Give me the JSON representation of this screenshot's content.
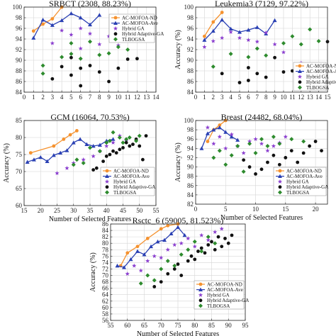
{
  "colors": {
    "ac_mofoa_nd": "#f5922f",
    "ac_mofoa_ave": "#2a40b3",
    "hybrid_ga": "#8b3fcf",
    "hybrid_adaptive_ga": "#111111",
    "tlbogsa": "#2e8b2e"
  },
  "chart_data": [
    {
      "type": "scatter",
      "title": "SRBCT (2308, 88.23%)",
      "xlabel": "",
      "ylabel": "",
      "xlim": [
        0,
        14
      ],
      "ylim": [
        84,
        100
      ],
      "xticks": [
        0,
        1,
        2,
        3,
        4,
        5,
        6,
        7,
        8,
        9,
        10,
        11,
        12,
        13,
        14
      ],
      "yticks": [
        84,
        86,
        88,
        90,
        92,
        94,
        96,
        98,
        100
      ],
      "legend": "top-right",
      "legend_entries": [
        "AC-MOFOA-ND",
        "AC-MOFOA-Ave",
        "Hybrid GA",
        "Hybrid Adaptive-GA",
        "TLBOGSA"
      ],
      "series": [
        {
          "name": "AC-MOFOA-ND",
          "marker": "circle-line",
          "color": "#f5922f",
          "x": [
            1,
            2,
            3,
            4
          ],
          "y": [
            95.5,
            96.8,
            97.8,
            100
          ]
        },
        {
          "name": "AC-MOFOA-Ave",
          "marker": "triangle-line",
          "color": "#2a40b3",
          "x": [
            1,
            2,
            3,
            4,
            5,
            6,
            7,
            8
          ],
          "y": [
            94.2,
            97.6,
            96.6,
            97.5,
            98.8,
            98.0,
            96.7,
            98.5
          ]
        },
        {
          "name": "Hybrid GA",
          "marker": "star",
          "color": "#8b3fcf",
          "x": [
            3,
            4,
            5,
            6,
            6,
            7,
            8,
            9,
            10
          ],
          "y": [
            93.2,
            95.6,
            94.8,
            92.2,
            96.0,
            95.0,
            93.0,
            94.5,
            92.8
          ]
        },
        {
          "name": "Hybrid Adaptive-GA",
          "marker": "circle",
          "color": "#111111",
          "x": [
            3,
            4,
            5,
            5,
            6,
            6,
            7,
            8,
            9,
            10,
            11,
            12
          ],
          "y": [
            86.5,
            88.8,
            87.2,
            90.5,
            85.2,
            88.5,
            89.0,
            87.8,
            86.0,
            88.5,
            90.2,
            90.3
          ]
        },
        {
          "name": "TLBOGSA",
          "marker": "diamond",
          "color": "#2e8b2e",
          "x": [
            2,
            2,
            4,
            5,
            5,
            6,
            7,
            8,
            9,
            10,
            11
          ],
          "y": [
            87.5,
            89.0,
            90.6,
            91.2,
            93.2,
            90.3,
            93.5,
            91.0,
            91.3,
            92.5,
            92.0
          ]
        }
      ]
    },
    {
      "type": "scatter",
      "title": "Leukemia3 (7129, 97.22%)",
      "xlabel": "",
      "ylabel": "Accuracy (%)",
      "xlim": [
        0,
        15
      ],
      "ylim": [
        84,
        100
      ],
      "xticks": [
        0,
        1,
        2,
        3,
        4,
        5,
        6,
        7,
        8,
        9,
        10,
        11,
        12,
        13,
        14,
        15
      ],
      "yticks": [
        84,
        86,
        88,
        90,
        92,
        94,
        96,
        98,
        100
      ],
      "legend": "bottom-right",
      "legend_entries": [
        "AC-MOFOA-ND",
        "AC-MOFOA-Ave",
        "Hybrid GA",
        "Hybrid Adaptive-GA",
        "TLBOGSA"
      ],
      "series": [
        {
          "name": "AC-MOFOA-ND",
          "marker": "circle-line",
          "color": "#f5922f",
          "x": [
            1,
            2,
            3
          ],
          "y": [
            94.5,
            97.2,
            99.0
          ]
        },
        {
          "name": "AC-MOFOA-Ave",
          "marker": "triangle-line",
          "color": "#2a40b3",
          "x": [
            1,
            2,
            3,
            4,
            5,
            6,
            7,
            8,
            9
          ],
          "y": [
            93.8,
            95.5,
            97.6,
            95.9,
            95.3,
            95.7,
            96.2,
            95.0,
            97.5
          ]
        },
        {
          "name": "Hybrid GA",
          "marker": "star",
          "color": "#8b3fcf",
          "x": [
            1,
            2,
            3,
            4,
            5,
            6,
            7,
            8,
            9,
            10,
            12
          ],
          "y": [
            92.5,
            93.6,
            94.2,
            95.3,
            94.2,
            93.8,
            93.5,
            95.2,
            93.0,
            91.5,
            89.5
          ]
        },
        {
          "name": "Hybrid Adaptive-GA",
          "marker": "circle",
          "color": "#111111",
          "x": [
            3,
            5,
            6,
            6,
            7,
            8,
            9,
            10,
            11,
            15
          ],
          "y": [
            87.5,
            85.8,
            86.2,
            88.6,
            87.5,
            86.8,
            90.5,
            87.8,
            88.0,
            93.5
          ]
        },
        {
          "name": "TLBOGSA",
          "marker": "diamond",
          "color": "#2e8b2e",
          "x": [
            2,
            4,
            6,
            7,
            8,
            10,
            11,
            12,
            13,
            14
          ],
          "y": [
            88.8,
            91.2,
            90.6,
            92.2,
            90.9,
            93.2,
            94.5,
            93.0,
            95.8,
            93.6
          ]
        }
      ]
    },
    {
      "type": "scatter",
      "title": "GCM (16064, 70.53%)",
      "xlabel": "Number of Selected Features",
      "ylabel": "Accuracy (%)",
      "xlim": [
        15,
        55
      ],
      "ylim": [
        60,
        85
      ],
      "xticks": [
        15,
        20,
        25,
        30,
        35,
        40,
        45,
        50,
        55
      ],
      "yticks": [
        60,
        65,
        70,
        75,
        80,
        85
      ],
      "legend": "bottom-right",
      "legend_entries": [
        "AC-MOFOA-ND",
        "AC-MOFOA-Ave",
        "Hybrid GA",
        "Hybrid Adaptive-GA",
        "TLBOGSA"
      ],
      "series": [
        {
          "name": "AC-MOFOA-ND",
          "marker": "circle-line",
          "color": "#f5922f",
          "x": [
            17,
            24,
            27,
            29,
            31
          ],
          "y": [
            75.5,
            77.5,
            79.5,
            80.8,
            82.0
          ]
        },
        {
          "name": "AC-MOFOA-Ave",
          "marker": "triangle-line",
          "color": "#2a40b3",
          "x": [
            16,
            18,
            20,
            22,
            24,
            26,
            28,
            30,
            32,
            34,
            36,
            38,
            40,
            42
          ],
          "y": [
            72.8,
            73.5,
            74.2,
            73.0,
            74.8,
            75.5,
            76.2,
            78.5,
            79.5,
            78.0,
            77.5,
            77.8,
            79.0,
            79.5
          ]
        },
        {
          "name": "Hybrid GA",
          "marker": "star",
          "color": "#8b3fcf",
          "x": [
            25,
            28,
            30,
            33,
            36,
            38,
            40,
            42,
            44,
            46
          ],
          "y": [
            69.5,
            71.0,
            72.5,
            73.5,
            74.5,
            76.0,
            77.5,
            78.5,
            80.5,
            79.0
          ]
        },
        {
          "name": "Hybrid Adaptive-GA",
          "marker": "circle",
          "color": "#111111",
          "x": [
            36,
            37,
            39,
            40,
            41,
            42,
            43,
            44,
            45,
            46,
            47,
            48,
            49,
            50,
            51,
            52
          ],
          "y": [
            70.5,
            71.0,
            73.0,
            74.5,
            75.0,
            76.0,
            75.5,
            76.5,
            77.0,
            78.5,
            77.5,
            78.0,
            79.5,
            77.5,
            73.5,
            80.5
          ]
        },
        {
          "name": "TLBOGSA",
          "marker": "diamond",
          "color": "#2e8b2e",
          "x": [
            30,
            31,
            33,
            35,
            38,
            40,
            41,
            42,
            44,
            45,
            46,
            47,
            49,
            50
          ],
          "y": [
            72.0,
            73.5,
            72.5,
            77.0,
            76.0,
            78.5,
            79.0,
            81.5,
            80.0,
            78.5,
            79.5,
            80.0,
            79.0,
            80.5
          ]
        }
      ]
    },
    {
      "type": "scatter",
      "title": "Breast (24482, 68.04%)",
      "xlabel": "Number of Selected Features",
      "ylabel": "Accuracy (%)",
      "xlim": [
        0,
        22
      ],
      "ylim": [
        82,
        100
      ],
      "xticks": [
        0,
        5,
        10,
        15,
        20
      ],
      "yticks": [
        82,
        84,
        86,
        88,
        90,
        92,
        94,
        96,
        98,
        100
      ],
      "legend": "bottom-right",
      "legend_entries": [
        "AC-MOFOA-ND",
        "AC-MOFOA-Ave",
        "Hybrid GA",
        "Hybrid Adaptive-GA",
        "TLBOGSA"
      ],
      "series": [
        {
          "name": "AC-MOFOA-ND",
          "marker": "circle-line",
          "color": "#f5922f",
          "x": [
            2,
            3,
            4,
            5
          ],
          "y": [
            95.5,
            98.0,
            99.0,
            100
          ]
        },
        {
          "name": "AC-MOFOA-Ave",
          "marker": "triangle-line",
          "color": "#2a40b3",
          "x": [
            1,
            2,
            3,
            4,
            5,
            6,
            7
          ],
          "y": [
            94.0,
            97.2,
            98.0,
            98.5,
            97.5,
            96.5,
            95.8
          ]
        },
        {
          "name": "Hybrid GA",
          "marker": "star",
          "color": "#8b3fcf",
          "x": [
            2,
            3,
            4,
            5,
            6,
            7,
            8,
            9,
            10,
            11,
            12,
            13,
            14,
            15
          ],
          "y": [
            98.5,
            95.0,
            96.5,
            94.0,
            97.0,
            94.5,
            93.0,
            95.5,
            96.0,
            95.0,
            93.5,
            94.5,
            95.2,
            96.5
          ]
        },
        {
          "name": "Hybrid Adaptive-GA",
          "marker": "circle",
          "color": "#111111",
          "x": [
            8,
            9,
            10,
            11,
            12,
            13,
            14,
            15,
            16,
            17,
            18,
            19,
            20,
            21
          ],
          "y": [
            91.5,
            90.0,
            88.5,
            89.5,
            91.0,
            92.5,
            90.5,
            92.0,
            93.5,
            91.0,
            93.0,
            94.5,
            95.5,
            93.5
          ]
        },
        {
          "name": "TLBOGSA",
          "marker": "diamond",
          "color": "#2e8b2e",
          "x": [
            3,
            4,
            5,
            6,
            7,
            8,
            9,
            10,
            11,
            12,
            13,
            14,
            16,
            18
          ],
          "y": [
            92.0,
            93.5,
            90.5,
            92.5,
            94.5,
            89.0,
            95.0,
            93.0,
            96.0,
            94.5,
            96.5,
            95.0,
            96.0,
            95.5
          ]
        }
      ]
    },
    {
      "type": "scatter",
      "title": "Rsctc_6 (59005, 81.523%)",
      "xlabel": "Number of Selected Features",
      "ylabel": "Accuracy (%)",
      "xlim": [
        55,
        95
      ],
      "ylim": [
        56,
        86
      ],
      "xticks": [
        55,
        60,
        65,
        70,
        75,
        80,
        85,
        90,
        95
      ],
      "yticks": [
        56,
        58,
        60,
        62,
        64,
        66,
        68,
        70,
        72,
        74,
        76,
        78,
        80,
        82,
        84,
        86
      ],
      "legend": "bottom-right",
      "legend_entries": [
        "AC-MOFOA-ND",
        "AC-MOFOA-Ave",
        "Hybrid GA",
        "Hybrid Adaptive-GA",
        "TLBOGSA"
      ],
      "series": [
        {
          "name": "AC-MOFOA-ND",
          "marker": "circle-line",
          "color": "#f5922f",
          "x": [
            58,
            60,
            63,
            66,
            70,
            72,
            75
          ],
          "y": [
            73.0,
            77.0,
            79.0,
            81.5,
            84.5,
            85.5,
            86.0
          ]
        },
        {
          "name": "AC-MOFOA-Ave",
          "marker": "triangle-line",
          "color": "#2a40b3",
          "x": [
            57,
            59,
            61,
            63,
            65,
            67,
            69,
            71,
            73,
            75,
            77
          ],
          "y": [
            73.0,
            72.5,
            75.0,
            77.5,
            76.5,
            79.0,
            80.5,
            81.0,
            83.0,
            85.0,
            82.5
          ]
        },
        {
          "name": "Hybrid GA",
          "marker": "star",
          "color": "#8b3fcf",
          "x": [
            60,
            62,
            64,
            66,
            68,
            70,
            72,
            74,
            76,
            78,
            80,
            82,
            84,
            86,
            88
          ],
          "y": [
            70.5,
            73.0,
            71.5,
            74.5,
            76.0,
            75.5,
            78.0,
            79.5,
            80.0,
            81.5,
            79.0,
            82.5,
            81.0,
            83.5,
            84.5
          ]
        },
        {
          "name": "Hybrid Adaptive-GA",
          "marker": "circle",
          "color": "#111111",
          "x": [
            68,
            70,
            72,
            74,
            75,
            76,
            78,
            79,
            80,
            81,
            82,
            83,
            84,
            85,
            86,
            87,
            88,
            89,
            90,
            91
          ],
          "y": [
            66.5,
            68.0,
            70.5,
            72.0,
            73.5,
            70.0,
            74.5,
            76.0,
            75.0,
            77.5,
            78.5,
            77.0,
            79.5,
            80.5,
            78.0,
            82.0,
            79.0,
            81.5,
            80.0,
            82.5
          ]
        },
        {
          "name": "TLBOGSA",
          "marker": "diamond",
          "color": "#2e8b2e",
          "x": [
            64,
            66,
            68,
            70,
            72,
            74,
            76,
            78,
            80,
            82,
            84,
            86
          ],
          "y": [
            67.5,
            70.0,
            68.5,
            72.0,
            74.5,
            73.0,
            76.5,
            78.0,
            80.5,
            77.5,
            82.0,
            80.0
          ]
        }
      ]
    }
  ]
}
